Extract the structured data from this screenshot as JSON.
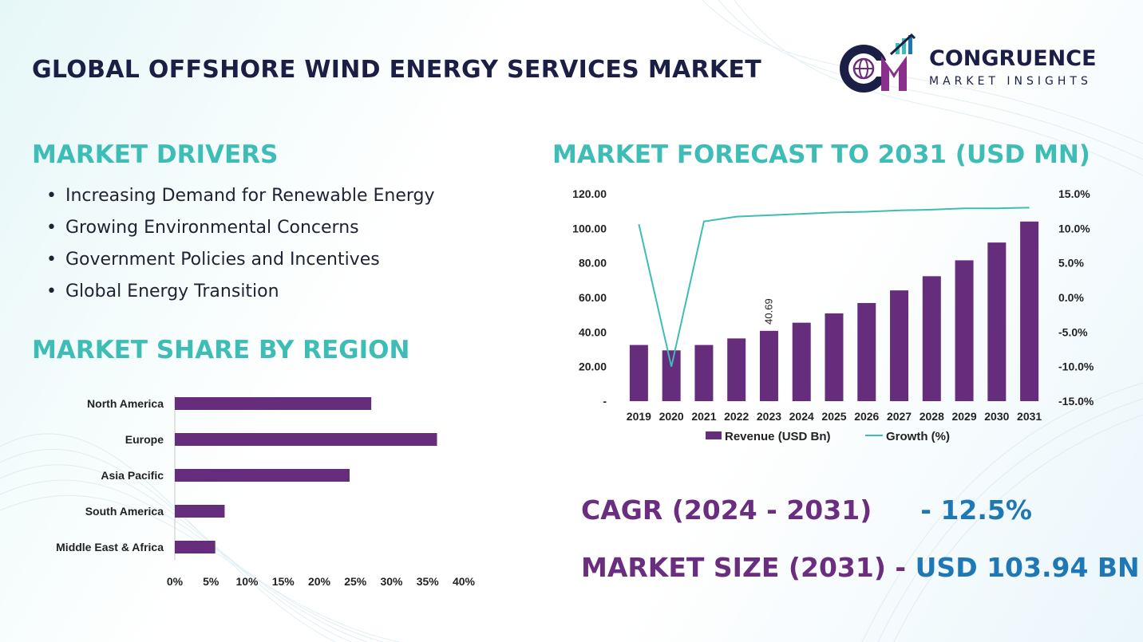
{
  "header": {
    "title": "GLOBAL OFFSHORE WIND ENERGY SERVICES MARKET"
  },
  "logo": {
    "initials": "CM",
    "word1": "CONGRUENCE",
    "word2": "MARKET INSIGHTS"
  },
  "drivers": {
    "title": "MARKET DRIVERS",
    "items": [
      "Increasing Demand for Renewable Energy",
      "Growing Environmental Concerns",
      "Government Policies and Incentives",
      "Global Energy Transition"
    ]
  },
  "region": {
    "title": "MARKET SHARE BY REGION"
  },
  "forecast": {
    "title": "MARKET FORECAST TO 2031 (USD MN)"
  },
  "stats": {
    "cagr_label": "CAGR (2024 - 2031)",
    "cagr_value": "- 12.5%",
    "size_label": "MARKET SIZE (2031)",
    "size_sep": "-",
    "size_value": "USD  103.94 BN"
  },
  "colors": {
    "bar": "#662d7c",
    "line": "#3dbdb5",
    "heading": "#3dbdb5",
    "title": "#1b1f45",
    "accent_purple": "#6a2d7f",
    "accent_blue": "#1f77b4"
  },
  "chart_data": [
    {
      "type": "bar",
      "orientation": "horizontal",
      "categories": [
        "North America",
        "Europe",
        "Asia Pacific",
        "South America",
        "Middle East & Africa"
      ],
      "values": [
        27.2,
        36.3,
        24.2,
        6.9,
        5.6
      ],
      "xlim": [
        0,
        40
      ],
      "xticks": [
        "0%",
        "5%",
        "10%",
        "15%",
        "20%",
        "25%",
        "30%",
        "35%",
        "40%"
      ],
      "grid": false
    },
    {
      "type": "bar",
      "categories": [
        "2019",
        "2020",
        "2021",
        "2022",
        "2023",
        "2024",
        "2025",
        "2026",
        "2027",
        "2028",
        "2029",
        "2030",
        "2031"
      ],
      "series": [
        {
          "name": "Revenue (USD Bn)",
          "type": "bar",
          "axis": "left",
          "values": [
            32.5,
            29.4,
            32.5,
            36.3,
            40.69,
            45.4,
            50.8,
            56.8,
            64.1,
            72.3,
            81.5,
            91.8,
            103.94
          ]
        },
        {
          "name": "Growth (%)",
          "type": "line",
          "axis": "right",
          "values": [
            10.6,
            -10.0,
            11.0,
            11.7,
            11.9,
            12.1,
            12.3,
            12.4,
            12.6,
            12.7,
            12.9,
            12.9,
            13.0
          ]
        }
      ],
      "data_labels": [
        {
          "category": "2023",
          "text": "40.69"
        }
      ],
      "y_left": {
        "lim": [
          0,
          120
        ],
        "ticks": [
          "-",
          "20.00",
          "40.00",
          "60.00",
          "80.00",
          "100.00",
          "120.00"
        ]
      },
      "y_right": {
        "lim": [
          -15,
          15
        ],
        "ticks": [
          "-15.0%",
          "-10.0%",
          "-5.0%",
          "0.0%",
          "5.0%",
          "10.0%",
          "15.0%"
        ]
      },
      "legend": "bottom",
      "grid": false
    }
  ]
}
